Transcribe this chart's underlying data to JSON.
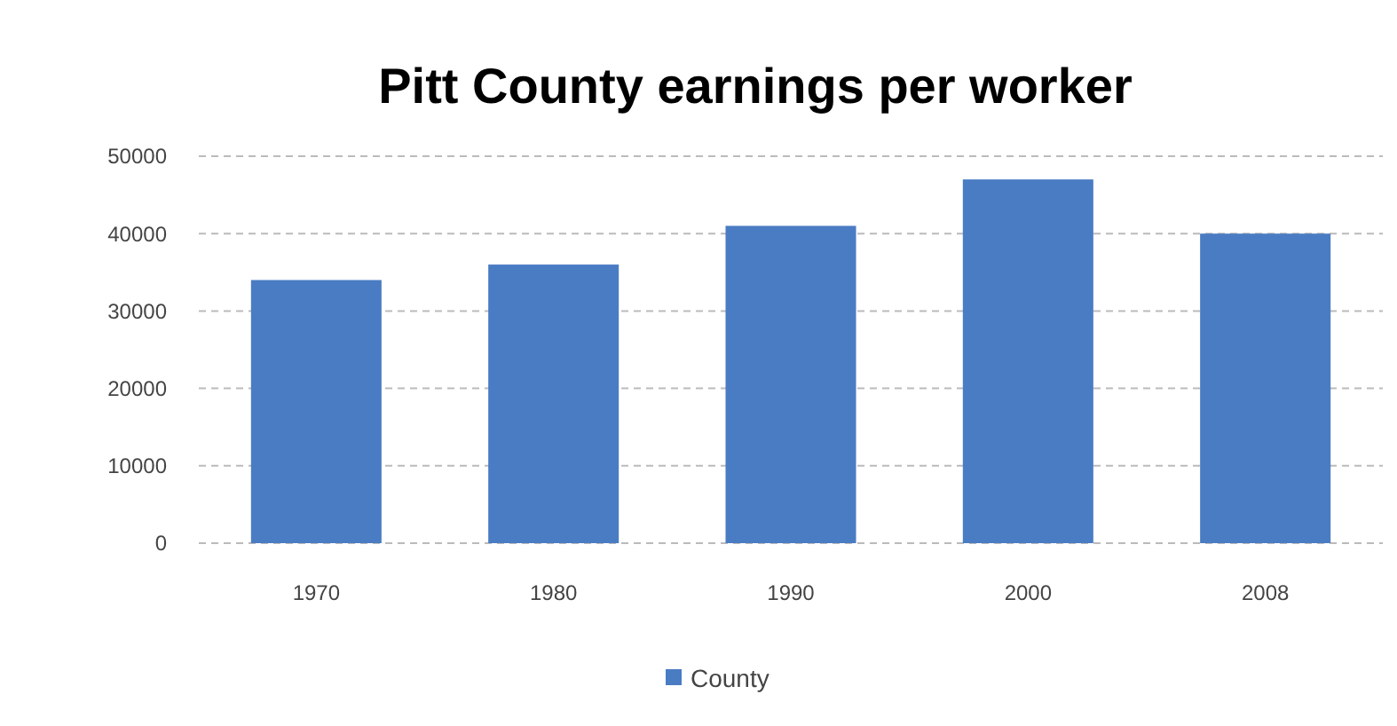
{
  "chart_data": {
    "type": "bar",
    "title": "Pitt County earnings per worker",
    "categories": [
      "1970",
      "1980",
      "1990",
      "2000",
      "2008"
    ],
    "series": [
      {
        "name": "County",
        "color": "#4a7cc4",
        "values": [
          34000,
          36000,
          41000,
          47000,
          40000
        ]
      }
    ],
    "ylim": [
      0,
      50000
    ],
    "yticks": [
      0,
      10000,
      20000,
      30000,
      40000,
      50000
    ],
    "grid": "y",
    "legend": "bottom"
  }
}
